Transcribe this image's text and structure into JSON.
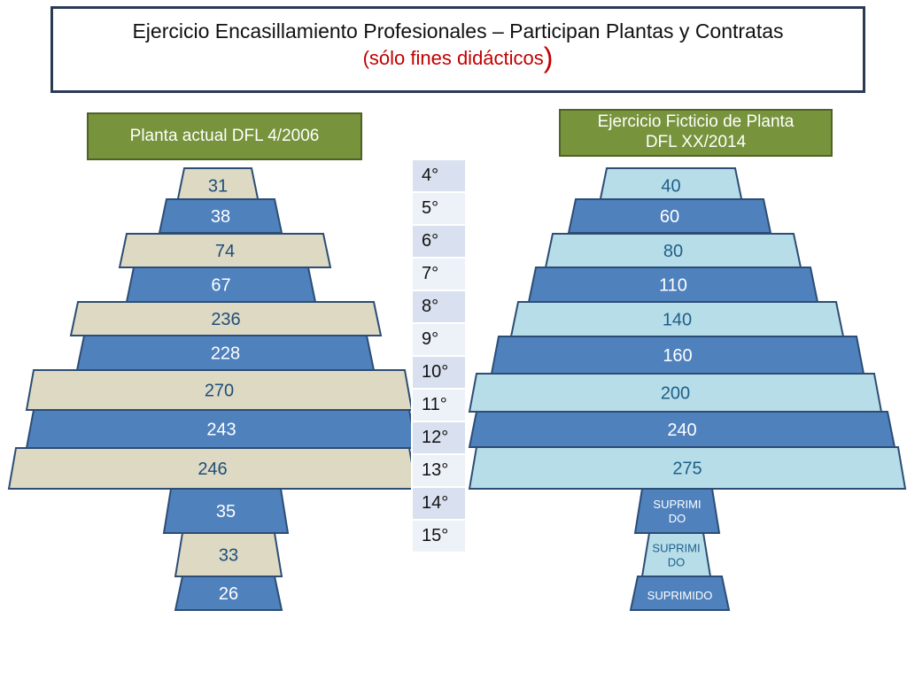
{
  "title": {
    "main": "Ejercicio Encasillamiento Profesionales – Participan Plantas y Contratas",
    "sub_text": "(sólo fines didácticos",
    "sub_paren": ")"
  },
  "left_header": "Planta actual DFL 4/2006",
  "right_header": {
    "line1": "Ejercicio Ficticio de Planta",
    "line2": "DFL XX/2014"
  },
  "grades": [
    "4°",
    "5°",
    "6°",
    "7°",
    "8°",
    "9°",
    "10°",
    "11°",
    "12°",
    "13°",
    "14°",
    "15°"
  ],
  "left_values": [
    "31",
    "38",
    "74",
    "67",
    "236",
    "228",
    "270",
    "243",
    "246",
    "35",
    "33",
    "26"
  ],
  "right_values": [
    "40",
    "60",
    "80",
    "110",
    "140",
    "160",
    "200",
    "240",
    "275",
    "SUPRIMIDO",
    "SUPRIMIDO",
    "SUPRIMIDO"
  ],
  "colors": {
    "left_dark": "#4f81bd",
    "left_light": "#ddd9c3",
    "right_dark": "#4f81bd",
    "right_light": "#b7dde8",
    "border": "#2c4d75",
    "text_left_light": "#1f4e79",
    "text_white": "#ffffff",
    "text_right_light": "#1f5f8b",
    "header_green": "#77933c"
  }
}
